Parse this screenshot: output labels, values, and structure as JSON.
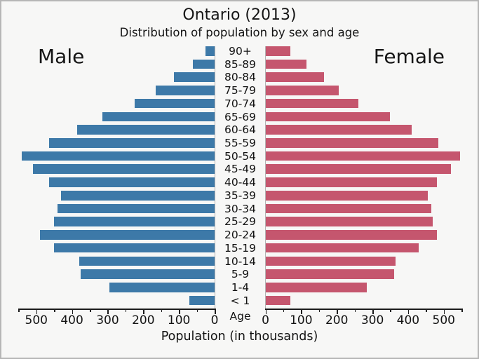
{
  "chart_data": {
    "type": "bar",
    "variant": "population-pyramid",
    "title": "Ontario (2013)",
    "subtitle": "Distribution of population by sex and age",
    "xlabel": "Population (in thousands)",
    "center_axis_label": "Age",
    "units": "thousands of people",
    "categories_top_to_bottom": [
      "90+",
      "85-89",
      "80-84",
      "75-79",
      "70-74",
      "65-69",
      "60-64",
      "55-59",
      "50-54",
      "45-49",
      "40-44",
      "35-39",
      "30-34",
      "25-29",
      "20-24",
      "15-19",
      "10-14",
      "5-9",
      "1-4",
      "< 1"
    ],
    "series": [
      {
        "name": "Male",
        "side": "left",
        "color": "#3d79a8",
        "values": [
          25,
          60,
          115,
          165,
          225,
          315,
          385,
          465,
          540,
          510,
          465,
          430,
          440,
          450,
          490,
          450,
          380,
          375,
          295,
          70
        ]
      },
      {
        "name": "Female",
        "side": "right",
        "color": "#c5566e",
        "values": [
          70,
          115,
          165,
          205,
          260,
          350,
          410,
          485,
          545,
          520,
          480,
          455,
          465,
          470,
          480,
          430,
          365,
          360,
          285,
          70
        ]
      }
    ],
    "x_ticks_labeled": [
      0,
      100,
      200,
      300,
      400,
      500
    ],
    "x_minor_ticks": [
      50,
      150,
      250,
      350,
      450,
      550
    ],
    "xlim": [
      0,
      550
    ],
    "tick_labels_left_to_right_left_axis": [
      "500",
      "400",
      "300",
      "200",
      "100",
      "0"
    ],
    "tick_labels_left_to_right_right_axis": [
      "0",
      "100",
      "200",
      "300",
      "400",
      "500"
    ],
    "legend_position": "none",
    "grid": false
  },
  "colors": {
    "male_bar": "#3d79a8",
    "female_bar": "#c5566e",
    "background": "#f7f7f6",
    "frame_border": "#b6b6b6",
    "axis": "#1c1c1c",
    "text": "#131313"
  }
}
